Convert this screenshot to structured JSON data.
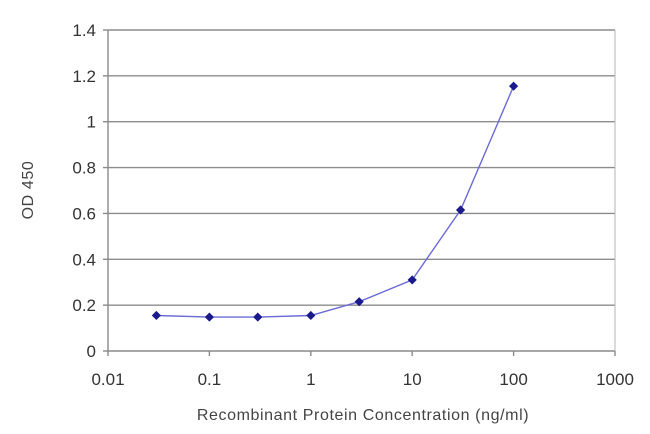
{
  "chart_data": {
    "type": "line",
    "title": "",
    "xlabel": "Recombinant Protein Concentration (ng/ml)",
    "ylabel": "OD 450",
    "x_scale": "log",
    "xlim": [
      0.01,
      1000
    ],
    "ylim": [
      0,
      1.4
    ],
    "x_ticks": [
      0.01,
      0.1,
      1,
      10,
      100,
      1000
    ],
    "x_tick_labels": [
      "0.01",
      "0.1",
      "1",
      "10",
      "100",
      "1000"
    ],
    "y_ticks": [
      0,
      0.2,
      0.4,
      0.6,
      0.8,
      1,
      1.2,
      1.4
    ],
    "y_tick_labels": [
      "0",
      "0.2",
      "0.4",
      "0.6",
      "0.8",
      "1",
      "1.2",
      "1.4"
    ],
    "grid": "horizontal",
    "legend": "none",
    "series": [
      {
        "color": "#1a1a8c",
        "line_color": "#6b6bd6",
        "x": [
          0.03,
          0.1,
          0.3,
          1,
          3,
          10,
          30,
          100
        ],
        "y": [
          0.155,
          0.148,
          0.148,
          0.155,
          0.215,
          0.31,
          0.615,
          1.155
        ]
      }
    ]
  }
}
